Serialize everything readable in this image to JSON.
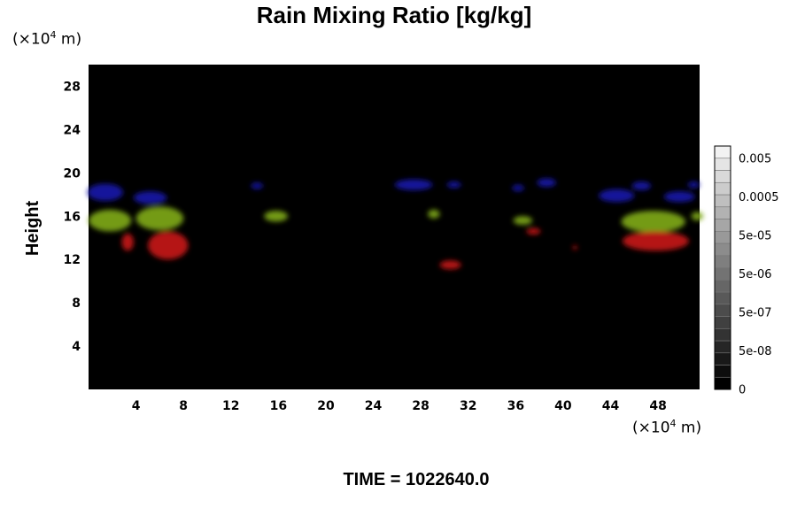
{
  "title": "Rain Mixing Ratio [kg/kg]",
  "footer": "TIME = 1022640.0",
  "chart_data": {
    "type": "heatmap",
    "title": "Rain Mixing Ratio [kg/kg]",
    "ylabel": "Height",
    "xlabel": "",
    "x_unit_prefix": "(×10",
    "x_unit_exp": "4",
    "x_unit_suffix": " m)",
    "y_unit_prefix": "(×10",
    "y_unit_exp": "4",
    "y_unit_suffix": " m)",
    "xlim": [
      0,
      51.5
    ],
    "ylim": [
      0,
      30
    ],
    "xticks": [
      4,
      8,
      12,
      16,
      20,
      24,
      28,
      32,
      36,
      40,
      44,
      48
    ],
    "yticks": [
      4,
      8,
      12,
      16,
      20,
      24,
      28
    ],
    "background": "#000000",
    "layers": [
      {
        "color": "#1a1aa8",
        "height_range": [
          17.5,
          19.5
        ],
        "blobs": [
          [
            1.4,
            18.2,
            1.5,
            0.8
          ],
          [
            5.2,
            17.7,
            1.4,
            0.6
          ],
          [
            14.2,
            18.8,
            0.5,
            0.3
          ],
          [
            27.4,
            18.9,
            1.6,
            0.5
          ],
          [
            30.8,
            18.9,
            0.6,
            0.3
          ],
          [
            36.2,
            18.6,
            0.5,
            0.3
          ],
          [
            38.6,
            19.1,
            0.8,
            0.4
          ],
          [
            44.5,
            17.9,
            1.5,
            0.6
          ],
          [
            46.6,
            18.8,
            0.8,
            0.4
          ],
          [
            49.8,
            17.8,
            1.3,
            0.5
          ],
          [
            51.0,
            18.9,
            0.5,
            0.3
          ]
        ]
      },
      {
        "color": "#7ea81a",
        "height_range": [
          14.5,
          17.5
        ],
        "blobs": [
          [
            1.8,
            15.6,
            1.8,
            1.0
          ],
          [
            6.0,
            15.8,
            2.0,
            1.1
          ],
          [
            15.8,
            16.0,
            1.0,
            0.5
          ],
          [
            29.1,
            16.2,
            0.5,
            0.4
          ],
          [
            36.6,
            15.6,
            0.8,
            0.4
          ],
          [
            47.6,
            15.5,
            2.7,
            1.0
          ],
          [
            51.3,
            16.0,
            0.5,
            0.4
          ]
        ]
      },
      {
        "color": "#c41414",
        "height_range": [
          11.5,
          14.5
        ],
        "blobs": [
          [
            3.3,
            13.6,
            0.5,
            0.8
          ],
          [
            6.7,
            13.3,
            1.7,
            1.3
          ],
          [
            30.5,
            11.5,
            0.9,
            0.4
          ],
          [
            37.5,
            14.6,
            0.6,
            0.3
          ],
          [
            41.0,
            13.1,
            0.2,
            0.2
          ],
          [
            47.8,
            13.7,
            2.8,
            0.9
          ]
        ]
      }
    ],
    "colorbar": {
      "labels": [
        "0.005",
        "0.0005",
        "5e-05",
        "5e-06",
        "5e-07",
        "5e-08",
        "0"
      ],
      "levels": 20,
      "color_low": "#000000",
      "color_high": "#f2f2f2"
    }
  }
}
